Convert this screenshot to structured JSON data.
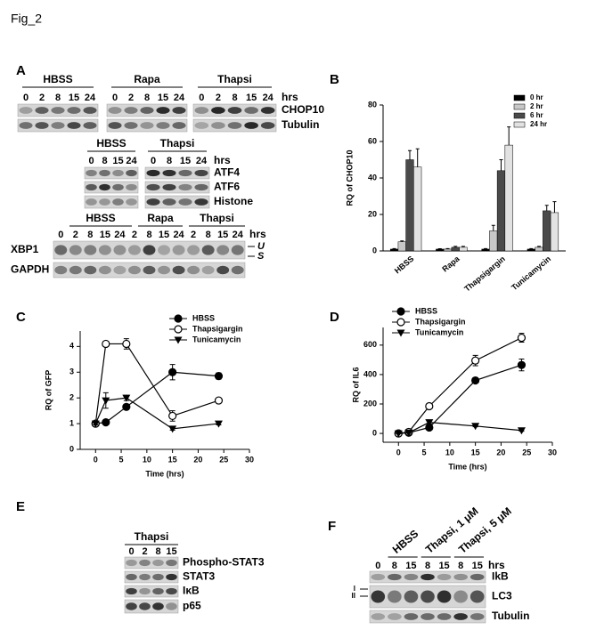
{
  "figure_title": "Fig_2",
  "panel_A": {
    "label": "A",
    "chop10_blot": {
      "groups": [
        "HBSS",
        "Rapa",
        "Thapsi"
      ],
      "lanes": [
        [
          "0",
          "2",
          "8",
          "15",
          "24"
        ],
        [
          "0",
          "2",
          "8",
          "15",
          "24"
        ],
        [
          "0",
          "2",
          "8",
          "15",
          "24"
        ]
      ],
      "unit": "hrs",
      "rows": [
        "CHOP10",
        "Tubulin"
      ]
    },
    "atf_blot": {
      "groups": [
        "HBSS",
        "Thapsi"
      ],
      "lanes": [
        [
          "0",
          "8",
          "15",
          "24"
        ],
        [
          "0",
          "8",
          "15",
          "24"
        ]
      ],
      "unit": "hrs",
      "rows": [
        "ATF4",
        "ATF6",
        "Histone"
      ]
    },
    "xbp1_blot": {
      "groups": [
        "HBSS",
        "Rapa",
        "Thapsi"
      ],
      "lanes": [
        "0",
        "2",
        "8",
        "15",
        "24",
        "2",
        "8",
        "15",
        "24",
        "2",
        "8",
        "15",
        "24"
      ],
      "unit": "hrs",
      "rows": [
        "XBP1",
        "GAPDH"
      ],
      "bands": [
        "U",
        "S"
      ]
    }
  },
  "panel_E": {
    "label": "E",
    "groups": [
      "Thapsi"
    ],
    "lanes": [
      "0",
      "2",
      "8",
      "15"
    ],
    "rows": [
      "Phospho-STAT3",
      "STAT3",
      "IκB",
      "p65"
    ]
  },
  "panel_F": {
    "label": "F",
    "groups": [
      "HBSS",
      "Thapsi, 1 μM",
      "Thapsi, 5 μM"
    ],
    "lanes": [
      "0",
      "8",
      "15",
      "8",
      "15",
      "8",
      "15"
    ],
    "unit": "hrs",
    "rows": [
      "IkB",
      "LC3",
      "Tubulin"
    ],
    "bands": [
      "I",
      "II"
    ]
  },
  "chart_data": [
    {
      "type": "bar",
      "panel_label": "B",
      "ylabel": "RQ of CHOP10",
      "categories": [
        "HBSS",
        "Rapa",
        "Thapsigargin",
        "Tunicamycin"
      ],
      "series": [
        {
          "name": "0 hr",
          "color": "#000000",
          "values": [
            1,
            1,
            1,
            1
          ],
          "errors": [
            0.3,
            0.2,
            0.3,
            0.3
          ]
        },
        {
          "name": "2 hr",
          "color": "#c8c8c8",
          "values": [
            5,
            1,
            11,
            2
          ],
          "errors": [
            0.5,
            0.3,
            3,
            0.5
          ]
        },
        {
          "name": "6 hr",
          "color": "#4a4a4a",
          "values": [
            50,
            2,
            44,
            22
          ],
          "errors": [
            5,
            0.5,
            6,
            3
          ]
        },
        {
          "name": "24 hr",
          "color": "#e2e2e2",
          "values": [
            46,
            2,
            58,
            21
          ],
          "errors": [
            10,
            0.5,
            10,
            6
          ]
        }
      ],
      "ylim": [
        0,
        80
      ],
      "yticks": [
        0,
        20,
        40,
        60,
        80
      ],
      "legend": "top-right"
    },
    {
      "type": "line",
      "panel_label": "C",
      "ylabel": "RQ of GFP",
      "xlabel": "Time (hrs)",
      "x": [
        0,
        2,
        6,
        15,
        24
      ],
      "series": [
        {
          "name": "HBSS",
          "marker": "filled-circle",
          "values": [
            1,
            1.05,
            1.65,
            3,
            2.85
          ],
          "errors": [
            0.05,
            0.05,
            0.1,
            0.3,
            0.12
          ]
        },
        {
          "name": "Thapsigargin",
          "marker": "open-circle",
          "values": [
            1,
            4.1,
            4.1,
            1.3,
            1.9
          ],
          "errors": [
            0.05,
            0.1,
            0.2,
            0.2,
            0.05
          ]
        },
        {
          "name": "Tunicamycin",
          "marker": "filled-triangle-down",
          "values": [
            1,
            1.9,
            2,
            0.8,
            1
          ],
          "errors": [
            0.05,
            0.3,
            0.1,
            0.05,
            0.05
          ]
        }
      ],
      "xlim": [
        -3,
        30
      ],
      "xticks": [
        0,
        5,
        10,
        15,
        20,
        25,
        30
      ],
      "ylim": [
        0,
        4.6
      ],
      "yticks": [
        0,
        1,
        2,
        3,
        4
      ],
      "legend": "top-right"
    },
    {
      "type": "line",
      "panel_label": "D",
      "ylabel": "RQ of IL6",
      "xlabel": "Time (hrs)",
      "x": [
        0,
        2,
        6,
        15,
        24
      ],
      "series": [
        {
          "name": "HBSS",
          "marker": "filled-circle",
          "values": [
            0,
            5,
            40,
            360,
            465
          ],
          "errors": [
            3,
            3,
            8,
            15,
            40
          ]
        },
        {
          "name": "Thapsigargin",
          "marker": "open-circle",
          "values": [
            0,
            10,
            185,
            495,
            650
          ],
          "errors": [
            3,
            3,
            10,
            35,
            30
          ]
        },
        {
          "name": "Tunicamycin",
          "marker": "filled-triangle-down",
          "values": [
            0,
            5,
            75,
            50,
            20
          ],
          "errors": [
            3,
            3,
            10,
            5,
            5
          ]
        }
      ],
      "xlim": [
        -3,
        30
      ],
      "xticks": [
        0,
        5,
        10,
        15,
        20,
        25,
        30
      ],
      "ylim": [
        -60,
        720
      ],
      "yticks": [
        0,
        200,
        400,
        600
      ],
      "legend": "top-left"
    }
  ]
}
